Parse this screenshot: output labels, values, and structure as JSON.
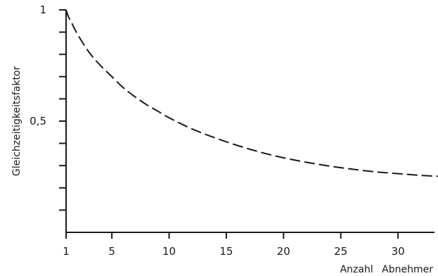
{
  "chart_data": {
    "type": "line",
    "title": "",
    "xlabel": "Anzahl Abnehmer",
    "ylabel": "Gleichzeitigkeitsfaktor",
    "xlim": [
      1,
      34
    ],
    "ylim": [
      0,
      1
    ],
    "x_ticks": [
      1,
      5,
      10,
      15,
      20,
      25,
      30
    ],
    "x_tick_labels": [
      "1",
      "5",
      "10",
      "15",
      "20",
      "25",
      "30"
    ],
    "y_ticks": [
      0.1,
      0.2,
      0.3,
      0.4,
      0.5,
      0.6,
      0.7,
      0.8,
      0.9,
      1.0
    ],
    "y_tick_labels": [
      {
        "value": 0.5,
        "label": "0,5"
      },
      {
        "value": 1.0,
        "label": "1"
      }
    ],
    "grid": false,
    "legend": "none",
    "line_style": "dashed",
    "line_color": "#1a1a1a",
    "series": [
      {
        "x": [
          1,
          1.2,
          1.5,
          2,
          3,
          4,
          5,
          6,
          7,
          8,
          9,
          10,
          12,
          14,
          16,
          18,
          20,
          22,
          24,
          26,
          28,
          30,
          32,
          33.5
        ],
        "y": [
          1.0,
          0.97,
          0.94,
          0.89,
          0.81,
          0.75,
          0.7,
          0.65,
          0.61,
          0.575,
          0.545,
          0.515,
          0.465,
          0.425,
          0.39,
          0.36,
          0.335,
          0.315,
          0.298,
          0.284,
          0.272,
          0.264,
          0.256,
          0.252
        ]
      }
    ]
  }
}
